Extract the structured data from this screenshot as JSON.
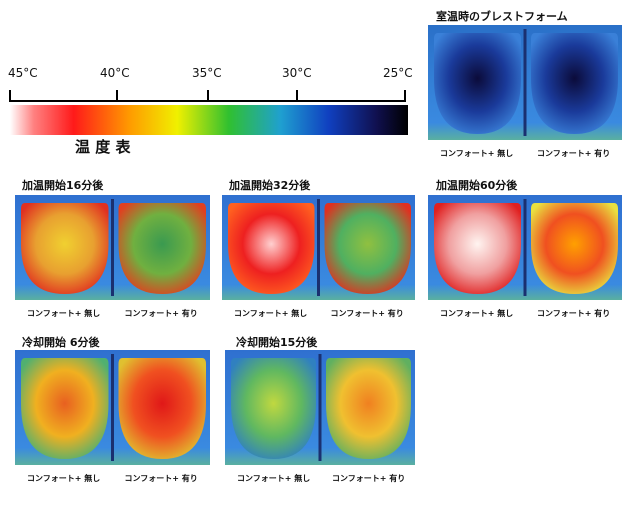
{
  "scale": {
    "ticks": [
      "45°C",
      "40°C",
      "35°C",
      "30°C",
      "25°C"
    ],
    "title": "温 度 表"
  },
  "panels": [
    {
      "title": "室温時のブレストフォーム",
      "left": "コンフォート+ 無し",
      "right": "コンフォート+ 有り"
    },
    {
      "title": "加温開始16分後",
      "left": "コンフォート+ 無し",
      "right": "コンフォート+ 有り"
    },
    {
      "title": "加温開始32分後",
      "left": "コンフォート+ 無し",
      "right": "コンフォート+ 有り"
    },
    {
      "title": "加温開始60分後",
      "left": "コンフォート+ 無し",
      "right": "コンフォート+ 有り"
    },
    {
      "title": "冷却開始 6分後",
      "left": "コンフォート+ 無し",
      "right": "コンフォート+ 有り"
    },
    {
      "title": "冷却開始15分後",
      "left": "コンフォート+ 無し",
      "right": "コンフォート+ 有り"
    }
  ]
}
